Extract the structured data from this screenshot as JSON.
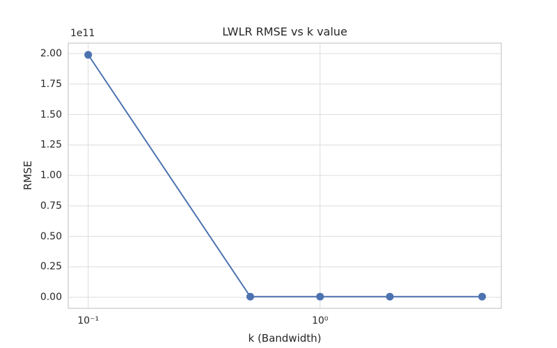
{
  "chart_data": {
    "type": "line",
    "title": "LWLR RMSE vs k value",
    "xlabel": "k (Bandwidth)",
    "ylabel": "RMSE",
    "y_offset_label": "1e11",
    "xscale": "log",
    "grid": true,
    "legend_position": "none",
    "series": [
      {
        "name": "RMSE",
        "x": [
          0.1,
          0.5,
          1.0,
          2.0,
          5.0
        ],
        "y_in_1e11_units": [
          1.99,
          0.005,
          0.005,
          0.005,
          0.005
        ]
      }
    ],
    "x_ticks": [
      {
        "value": 0.1,
        "label": "10⁻¹"
      },
      {
        "value": 1.0,
        "label": "10⁰"
      }
    ],
    "y_ticks": [
      {
        "value": 0.0,
        "label": "0.00"
      },
      {
        "value": 0.25,
        "label": "0.25"
      },
      {
        "value": 0.5,
        "label": "0.50"
      },
      {
        "value": 0.75,
        "label": "0.75"
      },
      {
        "value": 1.0,
        "label": "1.00"
      },
      {
        "value": 1.25,
        "label": "1.25"
      },
      {
        "value": 1.5,
        "label": "1.50"
      },
      {
        "value": 1.75,
        "label": "1.75"
      },
      {
        "value": 2.0,
        "label": "2.00"
      }
    ],
    "xlim": [
      0.082,
      6.05
    ],
    "ylim_in_1e11_units": [
      -0.091,
      2.086
    ],
    "colors": {
      "line": "#4C72B0",
      "marker": "#4C72B0",
      "grid": "#DCDCDC",
      "spine": "#CCCCCC",
      "text": "#262626",
      "background": "#FFFFFF"
    }
  }
}
